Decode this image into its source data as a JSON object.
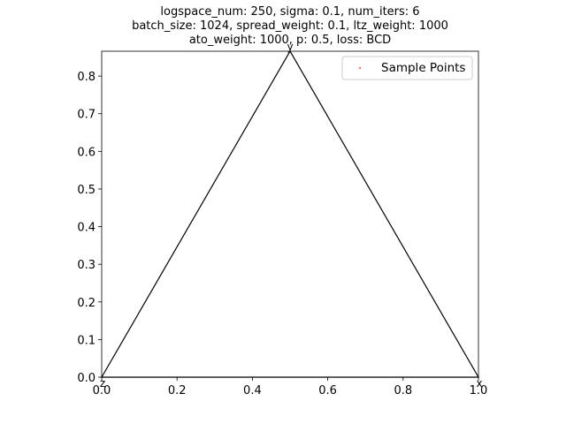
{
  "chart_data": {
    "type": "scatter",
    "title_lines": [
      "logspace_num: 250, sigma: 0.1, num_iters: 6",
      "batch_size: 1024, spread_weight: 0.1, ltz_weight: 1000",
      "ato_weight: 1000, p: 0.5, loss: BCD"
    ],
    "xlim": [
      0.0,
      1.0
    ],
    "ylim": [
      0.0,
      0.866
    ],
    "x_ticks": [
      {
        "value": 0.0,
        "label": "0.0"
      },
      {
        "value": 0.2,
        "label": "0.2"
      },
      {
        "value": 0.4,
        "label": "0.4"
      },
      {
        "value": 0.6,
        "label": "0.6"
      },
      {
        "value": 0.8,
        "label": "0.8"
      },
      {
        "value": 1.0,
        "label": "1.0"
      }
    ],
    "y_ticks": [
      {
        "value": 0.0,
        "label": "0.0"
      },
      {
        "value": 0.1,
        "label": "0.1"
      },
      {
        "value": 0.2,
        "label": "0.2"
      },
      {
        "value": 0.3,
        "label": "0.3"
      },
      {
        "value": 0.4,
        "label": "0.4"
      },
      {
        "value": 0.5,
        "label": "0.5"
      },
      {
        "value": 0.6,
        "label": "0.6"
      },
      {
        "value": 0.7,
        "label": "0.7"
      },
      {
        "value": 0.8,
        "label": "0.8"
      }
    ],
    "triangle": [
      {
        "name": "z",
        "x": 0.0,
        "y": 0.0
      },
      {
        "name": "y",
        "x": 0.5,
        "y": 0.866
      },
      {
        "name": "x",
        "x": 1.0,
        "y": 0.0
      }
    ],
    "series": [
      {
        "name": "Sample Points",
        "color": "#ff0000",
        "points": []
      }
    ],
    "legend": {
      "placement": "top-right",
      "label": "Sample Points"
    },
    "grid": false
  }
}
